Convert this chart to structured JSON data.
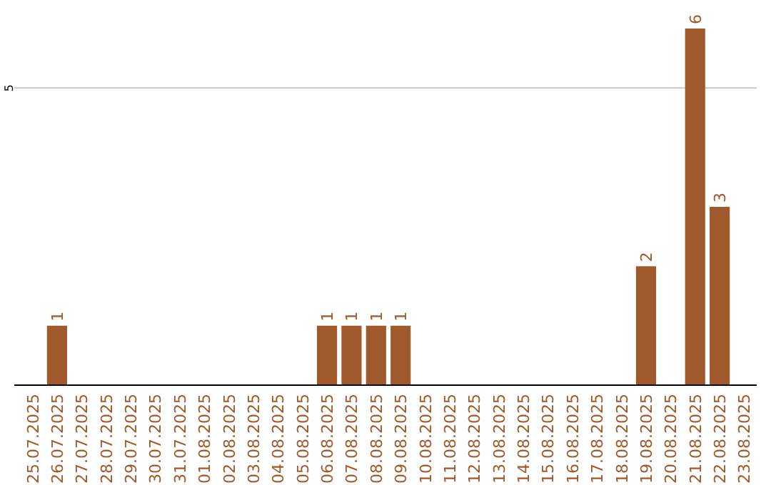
{
  "chart_data": {
    "type": "bar",
    "categories": [
      "25.07.2025",
      "26.07.2025",
      "27.07.2025",
      "28.07.2025",
      "29.07.2025",
      "30.07.2025",
      "31.07.2025",
      "01.08.2025",
      "02.08.2025",
      "03.08.2025",
      "04.08.2025",
      "05.08.2025",
      "06.08.2025",
      "07.08.2025",
      "08.08.2025",
      "09.08.2025",
      "10.08.2025",
      "11.08.2025",
      "12.08.2025",
      "13.08.2025",
      "14.08.2025",
      "15.08.2025",
      "16.08.2025",
      "17.08.2025",
      "18.08.2025",
      "19.08.2025",
      "20.08.2025",
      "21.08.2025",
      "22.08.2025",
      "23.08.2025"
    ],
    "values": [
      0,
      1,
      0,
      0,
      0,
      0,
      0,
      0,
      0,
      0,
      0,
      0,
      1,
      1,
      1,
      1,
      0,
      0,
      0,
      0,
      0,
      0,
      0,
      0,
      0,
      2,
      0,
      6,
      3,
      0
    ],
    "value_labels": [
      null,
      "1",
      null,
      null,
      null,
      null,
      null,
      null,
      null,
      null,
      null,
      null,
      "1",
      "1",
      "1",
      "1",
      null,
      null,
      null,
      null,
      null,
      null,
      null,
      null,
      null,
      "2",
      null,
      "6",
      "3",
      null
    ],
    "color": "#a0592a",
    "ref_lines": [
      {
        "axis": "y",
        "value": 5,
        "label": "5",
        "color": "#c8c8c8"
      }
    ]
  }
}
